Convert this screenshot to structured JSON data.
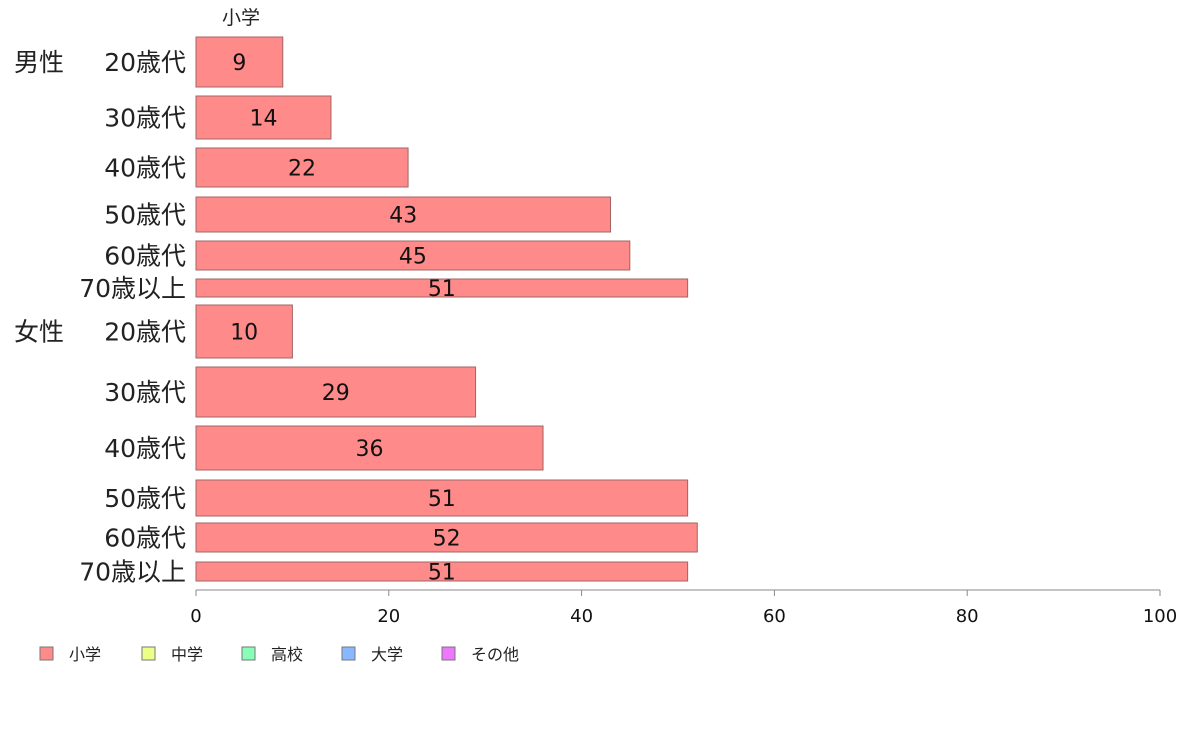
{
  "chart_data": {
    "type": "bar",
    "orientation": "horizontal",
    "stacked": true,
    "column_header": "小学",
    "groups": [
      {
        "name": "男性",
        "categories": [
          "20歳代",
          "30歳代",
          "40歳代",
          "50歳代",
          "60歳代",
          "70歳以上"
        ]
      },
      {
        "name": "女性",
        "categories": [
          "20歳代",
          "30歳代",
          "40歳代",
          "50歳代",
          "60歳代",
          "70歳以上"
        ]
      }
    ],
    "series": [
      {
        "name": "小学",
        "color": "#ff8a8a",
        "values": [
          9,
          14,
          22,
          43,
          45,
          51,
          10,
          29,
          36,
          51,
          52,
          51
        ]
      },
      {
        "name": "中学",
        "color": "#eeff88",
        "values": []
      },
      {
        "name": "高校",
        "color": "#88ffb8",
        "values": []
      },
      {
        "name": "大学",
        "color": "#88b8ff",
        "values": []
      },
      {
        "name": "その他",
        "color": "#ee77ff",
        "values": []
      }
    ],
    "xlim": [
      0,
      100
    ],
    "xticks": [
      0,
      20,
      40,
      60,
      80,
      100
    ],
    "legend": "bottom-left",
    "grid": false
  }
}
